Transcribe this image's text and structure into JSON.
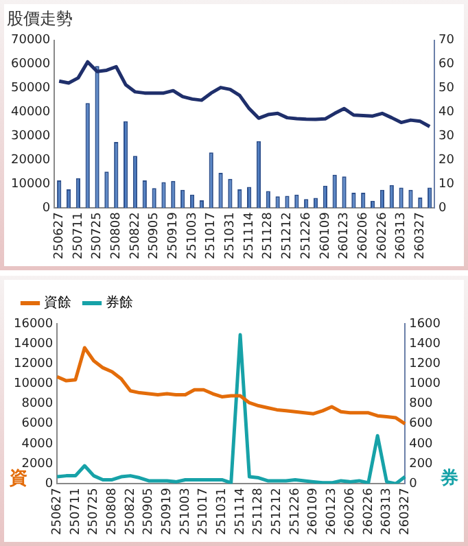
{
  "chart_data": [
    {
      "type": "bar",
      "title": "股價走勢",
      "categories": [
        "250627",
        null,
        "250711",
        null,
        "250725",
        null,
        "250808",
        null,
        "250822",
        null,
        "250905",
        null,
        "250919",
        null,
        "251003",
        null,
        "251017",
        null,
        "251031",
        null,
        "251114",
        null,
        "251128",
        null,
        "251212",
        null,
        "251226",
        null,
        "260109",
        null,
        "260123",
        null,
        "260206",
        null,
        "260226",
        null,
        "260313",
        null,
        "260327",
        null
      ],
      "series": [
        {
          "color": "#4f7fc4",
          "values": [
            11500,
            7800,
            12500,
            43800,
            59300,
            15200,
            27600,
            36200,
            21800,
            11500,
            8300,
            10800,
            11300,
            7600,
            5600,
            3200,
            23200,
            14700,
            12200,
            7800,
            8800,
            27900,
            7100,
            4900,
            5100,
            5600,
            3700,
            4200,
            9300,
            13900,
            13200,
            6400,
            6400,
            3000,
            7600,
            9600,
            8500,
            7600,
            4400,
            8500
          ]
        },
        {
          "type": "line",
          "axis": "y2",
          "color": "#1f2f6b",
          "values": [
            53,
            52.2,
            54.3,
            61,
            57,
            57.5,
            59,
            51.5,
            48.5,
            48,
            48,
            48,
            49,
            46.5,
            45.5,
            45,
            48,
            50.3,
            49.5,
            47,
            41.5,
            37.5,
            39,
            39.5,
            37.7,
            37.3,
            37.1,
            37,
            37.2,
            39.5,
            41.5,
            38.8,
            38.6,
            38.4,
            39.5,
            37.7,
            35.7,
            36.7,
            36.2,
            34
          ]
        }
      ],
      "ylim": [
        0,
        70000
      ],
      "yticks": [
        0,
        10000,
        20000,
        30000,
        40000,
        50000,
        60000,
        70000
      ],
      "y2lim": [
        0,
        70
      ],
      "y2ticks": [
        0,
        10,
        20,
        30,
        40,
        50,
        60,
        70
      ],
      "grid": false,
      "legend": false,
      "marker": "none"
    },
    {
      "type": "line",
      "ylabel": "資",
      "y2label": "券",
      "categories": [
        "250627",
        null,
        "250711",
        null,
        "250725",
        null,
        "250808",
        null,
        "250822",
        null,
        "250905",
        null,
        "250919",
        null,
        "251003",
        null,
        "251017",
        null,
        "251031",
        null,
        "251114",
        null,
        "251128",
        null,
        "251212",
        null,
        "251226",
        null,
        "260109",
        null,
        "260123",
        null,
        "260206",
        null,
        "260226",
        null,
        "260313",
        null,
        "260327"
      ],
      "series": [
        {
          "name": "資餘",
          "color": "#e36c0a",
          "values": [
            10700,
            10300,
            10400,
            13600,
            12300,
            11600,
            11200,
            10500,
            9300,
            9100,
            9000,
            8900,
            9000,
            8900,
            8900,
            9400,
            9400,
            9000,
            8700,
            8800,
            8800,
            8100,
            7800,
            7600,
            7400,
            7300,
            7200,
            7100,
            7000,
            7300,
            7700,
            7200,
            7100,
            7100,
            7100,
            6800,
            6700,
            6600,
            6000
          ]
        },
        {
          "name": "券餘",
          "axis": "y2",
          "color": "#17a2a8",
          "values": [
            70,
            80,
            80,
            180,
            80,
            40,
            40,
            70,
            80,
            60,
            30,
            30,
            30,
            20,
            40,
            40,
            40,
            40,
            40,
            10,
            1490,
            70,
            60,
            30,
            30,
            30,
            40,
            30,
            20,
            10,
            10,
            30,
            20,
            30,
            10,
            480,
            20,
            0,
            70
          ]
        }
      ],
      "ylim": [
        0,
        16000
      ],
      "yticks": [
        0,
        2000,
        4000,
        6000,
        8000,
        10000,
        12000,
        14000,
        16000
      ],
      "y2lim": [
        0,
        1600
      ],
      "y2ticks": [
        0,
        200,
        400,
        600,
        800,
        1000,
        1200,
        1400,
        1600
      ],
      "grid": false,
      "legend": "top left",
      "marker": "none"
    }
  ]
}
